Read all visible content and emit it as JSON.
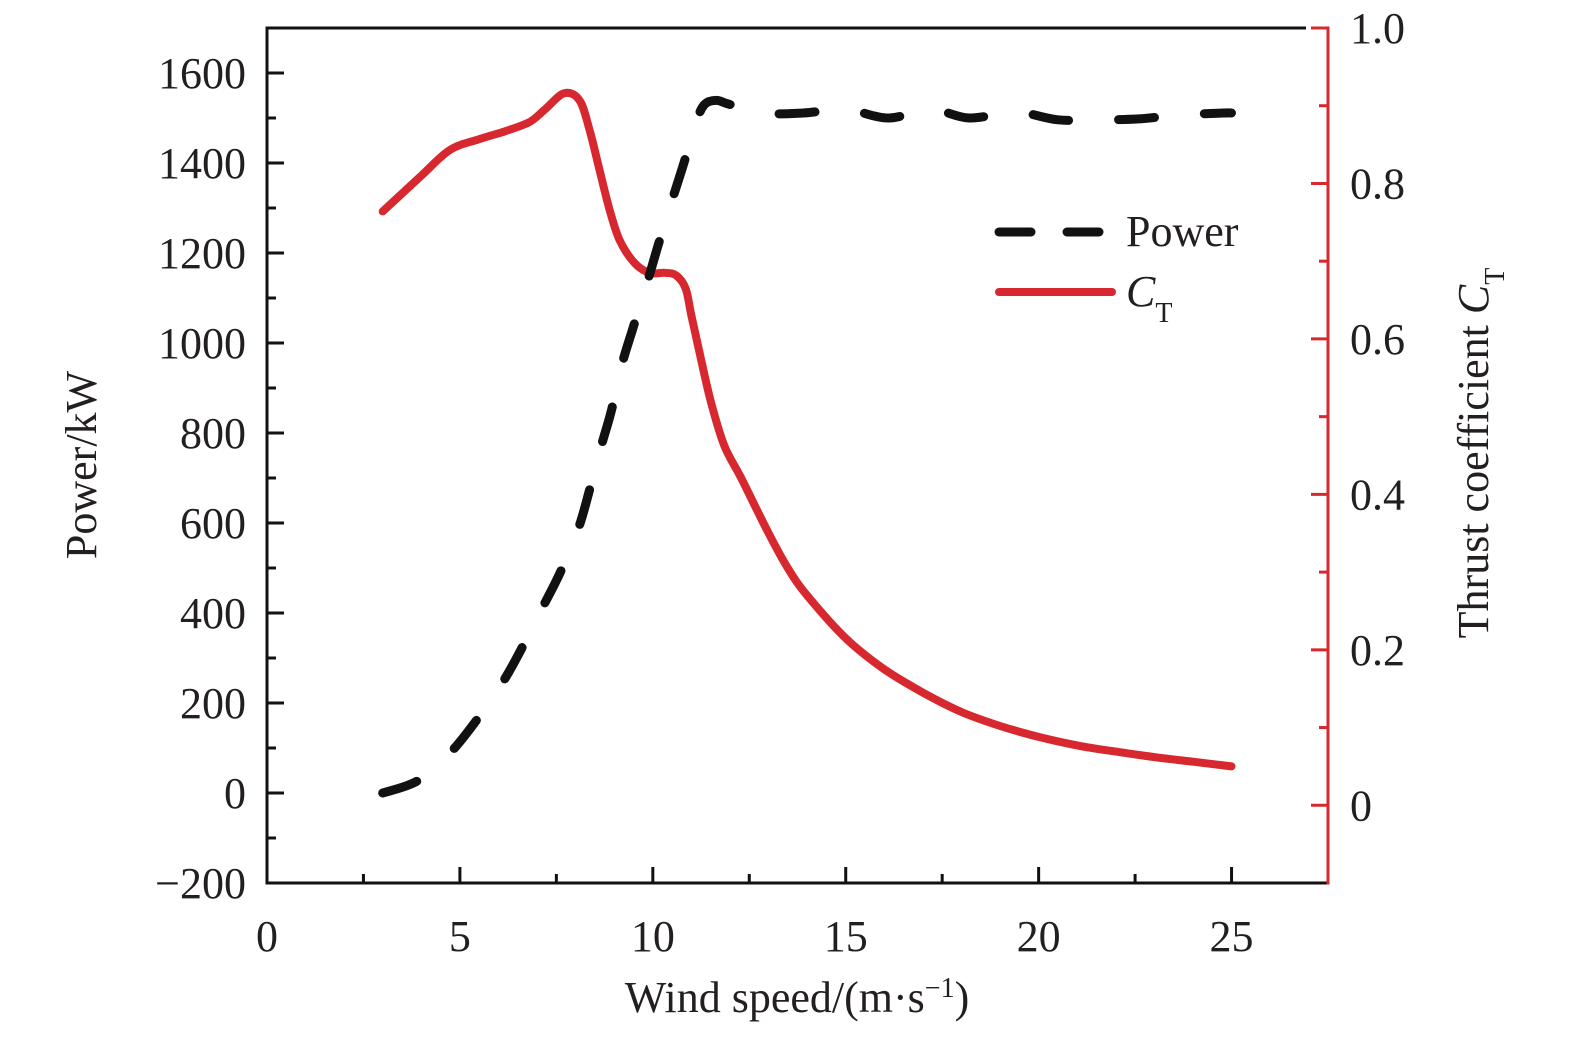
{
  "chart_data": {
    "type": "line",
    "title": "",
    "xlabel": "Wind speed/(m·s⁻¹)",
    "xlabel_parts": {
      "base": "Wind speed/(m·s",
      "sup": "−1",
      "tail": ")"
    },
    "ylabel_left": "Power/kW",
    "ylabel_right_parts": {
      "base": "Thrust coefficient ",
      "italic": "C",
      "sub": "T"
    },
    "ylabel_right": "Thrust coefficient CT",
    "xlim": [
      0,
      27.5
    ],
    "ylim_left": [
      -200,
      1700
    ],
    "ylim_right": [
      -0.1,
      1.0
    ],
    "x_ticks": [
      0,
      5,
      10,
      15,
      20,
      25
    ],
    "x_tick_labels": [
      "0",
      "5",
      "10",
      "15",
      "20",
      "25"
    ],
    "x_minor_ticks": [
      2.5,
      7.5,
      12.5,
      17.5,
      22.5
    ],
    "y_left_ticks": [
      -200,
      0,
      200,
      400,
      600,
      800,
      1000,
      1200,
      1400,
      1600
    ],
    "y_left_tick_labels": [
      "−200",
      "0",
      "200",
      "400",
      "600",
      "800",
      "1000",
      "1200",
      "1400",
      "1600"
    ],
    "y_left_minor_ticks": [
      -100,
      100,
      300,
      500,
      700,
      900,
      1100,
      1300,
      1500
    ],
    "y_right_ticks": [
      0,
      0.2,
      0.4,
      0.6,
      0.8,
      1.0
    ],
    "y_right_tick_labels": [
      "0",
      "0.2",
      "0.4",
      "0.6",
      "0.8",
      "1.0"
    ],
    "y_right_minor_ticks": [
      0.1,
      0.3,
      0.5,
      0.7,
      0.9
    ],
    "grid": false,
    "legend_position": "top-right",
    "colors": {
      "power": "#111111",
      "ct": "#d7282f",
      "right_axis": "#d7282f",
      "axis": "#111111"
    },
    "series": [
      {
        "name": "Power",
        "legend_label": "Power",
        "axis": "left",
        "style": "dashed",
        "x": [
          3.0,
          3.9,
          4.74,
          5.38,
          6.1,
          6.6,
          7.14,
          7.6,
          8.07,
          8.36,
          8.67,
          8.93,
          9.21,
          9.47,
          9.86,
          10.12,
          10.48,
          10.77,
          11.13,
          11.34,
          11.65,
          12.0,
          12.9,
          13.9,
          15.0,
          16.1,
          17.2,
          18.2,
          19.4,
          20.5,
          21.6,
          22.6,
          23.7,
          24.8,
          25.0
        ],
        "values": [
          0,
          27,
          89,
          156,
          245,
          321,
          412,
          490,
          588,
          673,
          773,
          851,
          955,
          1029,
          1136,
          1212,
          1312,
          1390,
          1492,
          1530,
          1539,
          1530,
          1511,
          1511,
          1519,
          1500,
          1519,
          1500,
          1513,
          1496,
          1496,
          1498,
          1507,
          1511,
          1511
        ]
      },
      {
        "name": "CT",
        "legend_label_parts": {
          "italic": "C",
          "sub": "T"
        },
        "axis": "right",
        "style": "solid",
        "x": [
          3.0,
          4.0,
          4.74,
          5.5,
          6.16,
          6.8,
          7.2,
          7.7,
          8.1,
          8.36,
          8.62,
          8.88,
          9.14,
          9.52,
          9.91,
          10.3,
          10.6,
          10.85,
          11.0,
          11.2,
          11.5,
          11.85,
          12.3,
          13.0,
          13.5,
          14.0,
          15.0,
          16.0,
          17.0,
          18.0,
          19.0,
          20.0,
          21.0,
          22.0,
          23.0,
          24.0,
          25.0
        ],
        "values": [
          0.764,
          0.81,
          0.843,
          0.857,
          0.867,
          0.879,
          0.895,
          0.916,
          0.907,
          0.869,
          0.817,
          0.766,
          0.727,
          0.698,
          0.685,
          0.685,
          0.682,
          0.665,
          0.63,
          0.585,
          0.52,
          0.463,
          0.42,
          0.35,
          0.305,
          0.27,
          0.215,
          0.175,
          0.145,
          0.12,
          0.102,
          0.088,
          0.077,
          0.069,
          0.062,
          0.056,
          0.05
        ]
      }
    ]
  }
}
